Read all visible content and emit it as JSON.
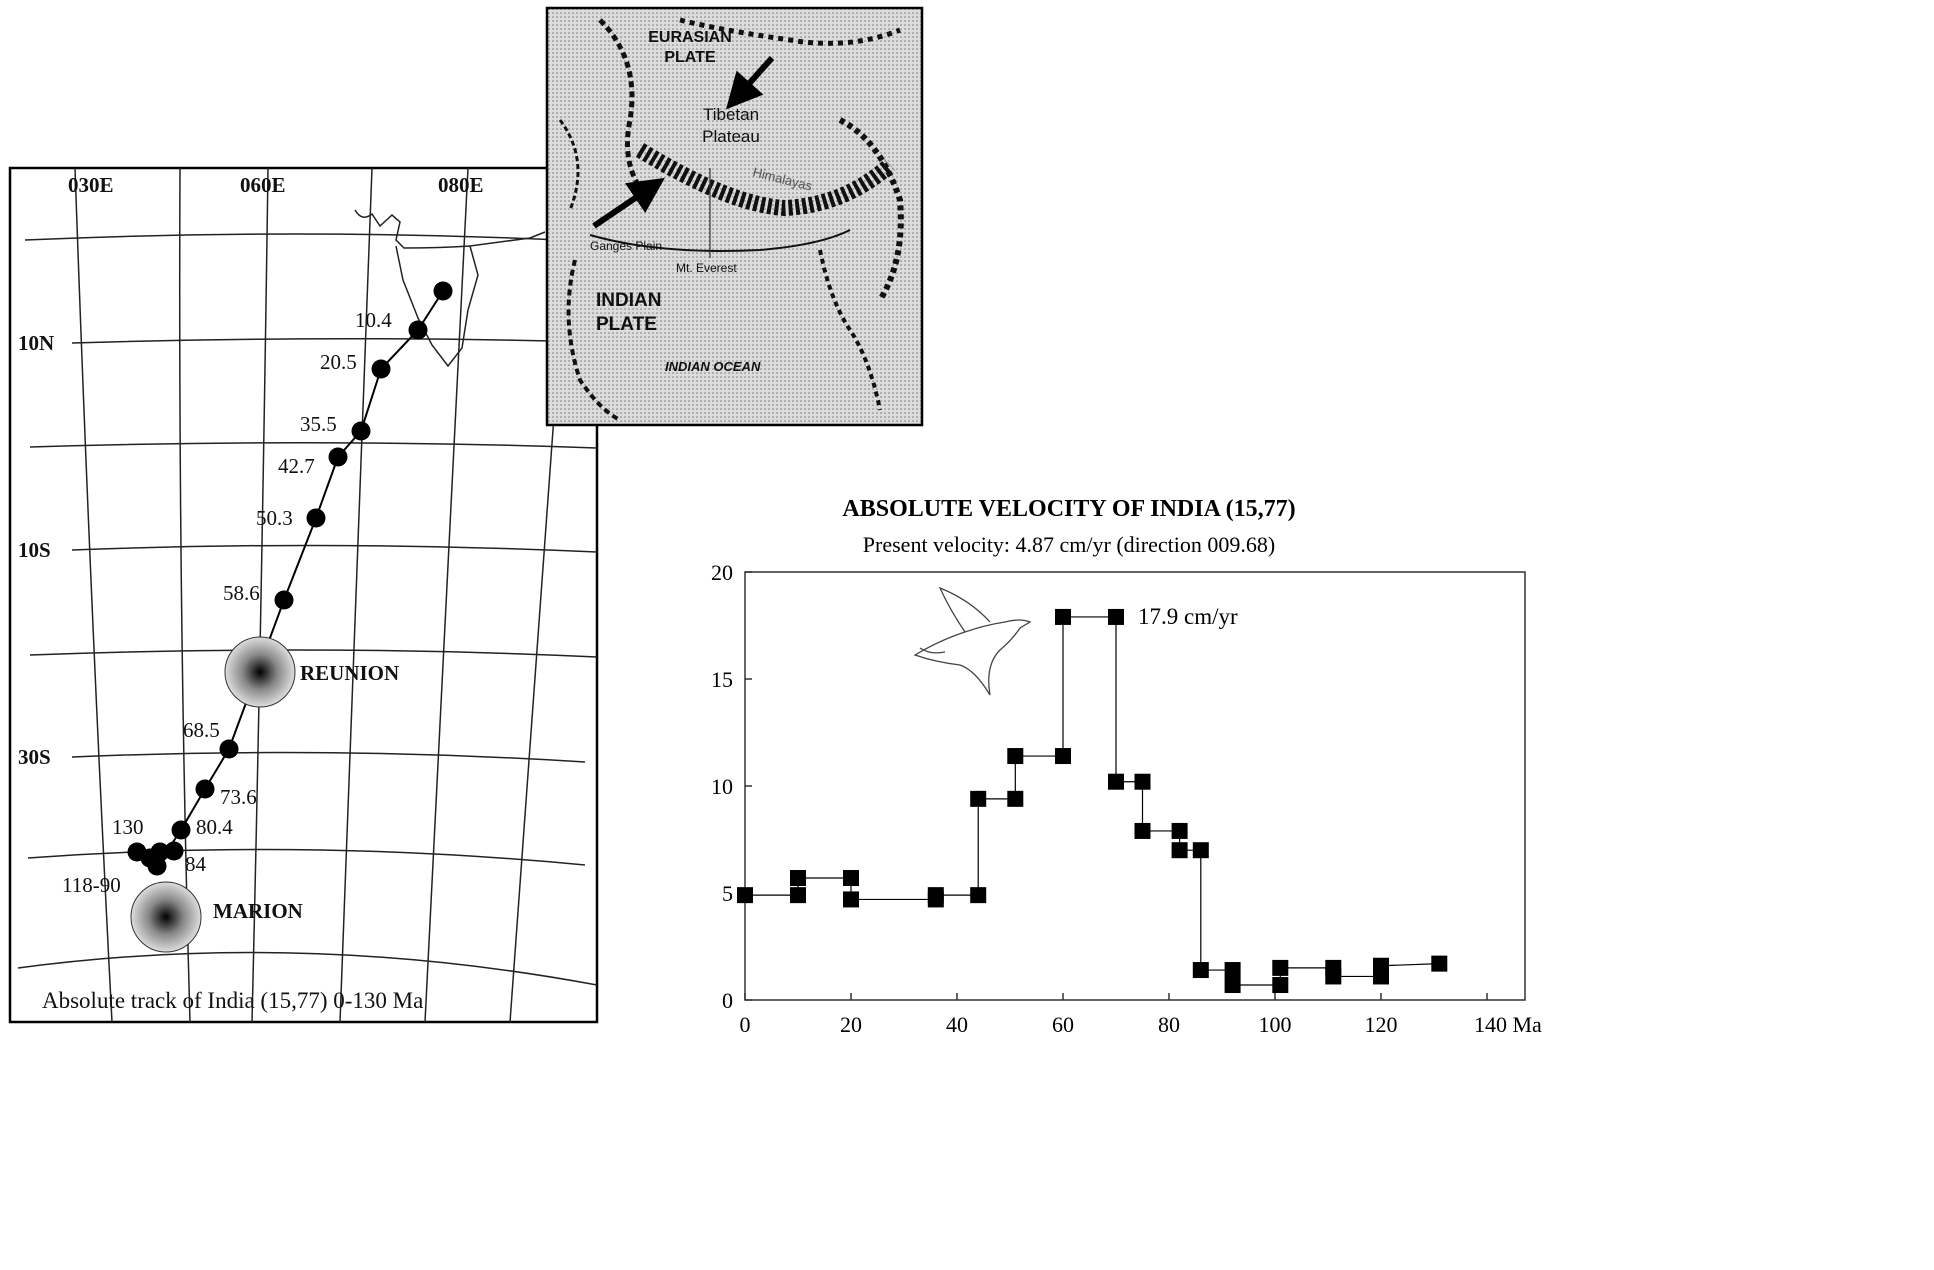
{
  "map": {
    "longitude_labels": [
      "030E",
      "060E",
      "080E"
    ],
    "latitude_labels": [
      "10N",
      "10S",
      "30S"
    ],
    "track_labels": [
      "10.4",
      "20.5",
      "35.5",
      "42.7",
      "50.3",
      "58.6",
      "68.5",
      "73.6",
      "80.4",
      "84",
      "130",
      "118-90"
    ],
    "hotspots": [
      "REUNION",
      "MARION"
    ],
    "caption": "Absolute track of India (15,77) 0-130 Ma"
  },
  "inset": {
    "eurasian_plate": [
      "EURASIAN",
      "PLATE"
    ],
    "tibetan_plateau": [
      "Tibetan",
      "Plateau"
    ],
    "himalayas": "Himalayas",
    "ganges_plain": "Ganges Plain",
    "mt_everest": "Mt. Everest",
    "indian_plate": [
      "INDIAN",
      "PLATE"
    ],
    "indian_ocean": "INDIAN OCEAN"
  },
  "chart_data": {
    "type": "line",
    "title": "ABSOLUTE VELOCITY OF INDIA (15,77)",
    "subtitle": "Present velocity: 4.87 cm/yr (direction 009.68)",
    "x": [
      0,
      10,
      10,
      20,
      20,
      36,
      36,
      44,
      44,
      51,
      51,
      60,
      60,
      70,
      70,
      75,
      75,
      82,
      82,
      86,
      86,
      92,
      92,
      101,
      101,
      111,
      111,
      120,
      120,
      131
    ],
    "series": [
      {
        "color": "#000000",
        "marker": "square",
        "values": [
          4.9,
          4.9,
          5.7,
          5.7,
          4.7,
          4.7,
          4.9,
          4.9,
          9.4,
          9.4,
          11.4,
          11.4,
          17.9,
          17.9,
          10.2,
          10.2,
          7.9,
          7.9,
          7.0,
          7.0,
          1.4,
          1.4,
          0.7,
          0.7,
          1.5,
          1.5,
          1.1,
          1.1,
          1.6,
          1.7
        ]
      }
    ],
    "annotation": "17.9 cm/yr",
    "xlim": [
      0,
      140
    ],
    "ylim": [
      0,
      20
    ],
    "xticks": [
      0,
      20,
      40,
      60,
      80,
      100,
      120,
      {
        "value": 140,
        "label": "140 Ma"
      }
    ],
    "yticks": [
      0,
      5,
      10,
      15,
      20
    ]
  }
}
